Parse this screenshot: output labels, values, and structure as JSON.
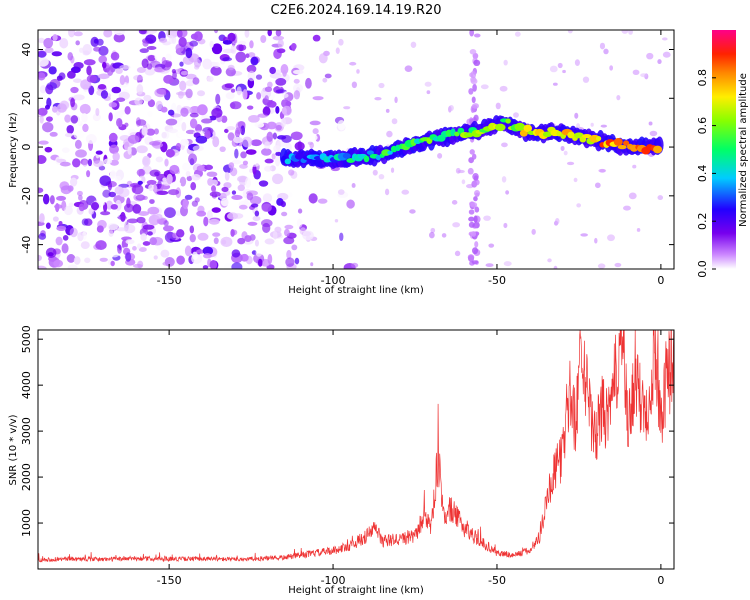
{
  "title": "C2E6.2024.169.14.19.R20",
  "colors": {
    "snr_line": "#ee3333",
    "axis": "#000000",
    "background": "#ffffff"
  },
  "chart_data": [
    {
      "type": "heatmap",
      "xlabel": "Height of straight line (km)",
      "ylabel": "Frequency (Hz)",
      "xlim": [
        -190,
        4
      ],
      "ylim": [
        -50,
        48
      ],
      "xticks": [
        -150,
        -100,
        -50,
        0
      ],
      "yticks": [
        -40,
        -20,
        0,
        20,
        40
      ],
      "colorbar": {
        "label": "Normalized spectral amplitude",
        "range": [
          0,
          1
        ],
        "ticks": [
          0.0,
          0.2,
          0.4,
          0.6,
          0.8
        ],
        "colormap": "rainbow (white → purple → blue → cyan → green → yellow → orange → red → magenta)"
      },
      "features": [
        {
          "description": "noise speckle",
          "x_range": [
            -190,
            -110
          ],
          "y_range": [
            -50,
            48
          ],
          "amplitude": [
            0.0,
            0.15
          ]
        },
        {
          "description": "signal band start",
          "x": -115,
          "y": -5
        },
        {
          "description": "signal band end",
          "x": 2,
          "y": 0
        },
        {
          "description": "vertical noise streak",
          "x": -57,
          "y_range": [
            -50,
            48
          ]
        }
      ],
      "ridge": [
        [
          -115,
          -5
        ],
        [
          -100,
          -5
        ],
        [
          -85,
          -3
        ],
        [
          -70,
          3
        ],
        [
          -55,
          7
        ],
        [
          -48,
          10
        ],
        [
          -40,
          6
        ],
        [
          -30,
          6
        ],
        [
          -20,
          3
        ],
        [
          -10,
          0
        ],
        [
          0,
          0
        ]
      ]
    },
    {
      "type": "line",
      "xlabel": "Height of straight line (km)",
      "ylabel": "SNR (10 * v/v)",
      "xlim": [
        -190,
        4
      ],
      "ylim": [
        0,
        5200
      ],
      "xticks": [
        -150,
        -100,
        -50,
        0
      ],
      "yticks": [
        1000,
        2000,
        3000,
        4000,
        5000
      ],
      "series": [
        {
          "points": [
            [
              -190,
              200
            ],
            [
              -180,
              220
            ],
            [
              -170,
              210
            ],
            [
              -160,
              230
            ],
            [
              -150,
              220
            ],
            [
              -140,
              220
            ],
            [
              -130,
              210
            ],
            [
              -120,
              230
            ],
            [
              -115,
              250
            ],
            [
              -110,
              300
            ],
            [
              -105,
              350
            ],
            [
              -100,
              400
            ],
            [
              -95,
              500
            ],
            [
              -90,
              700
            ],
            [
              -87,
              900
            ],
            [
              -85,
              600
            ],
            [
              -80,
              650
            ],
            [
              -75,
              700
            ],
            [
              -72,
              1200
            ],
            [
              -70,
              900
            ],
            [
              -68,
              2400
            ],
            [
              -66,
              1100
            ],
            [
              -64,
              1300
            ],
            [
              -60,
              900
            ],
            [
              -55,
              600
            ],
            [
              -50,
              350
            ],
            [
              -45,
              300
            ],
            [
              -40,
              400
            ],
            [
              -37,
              700
            ],
            [
              -35,
              1500
            ],
            [
              -33,
              2000
            ],
            [
              -30,
              2500
            ],
            [
              -28,
              3800
            ],
            [
              -26,
              3200
            ],
            [
              -24,
              5100
            ],
            [
              -22,
              3500
            ],
            [
              -20,
              2800
            ],
            [
              -18,
              3500
            ],
            [
              -16,
              3200
            ],
            [
              -14,
              4100
            ],
            [
              -12,
              5200
            ],
            [
              -10,
              3000
            ],
            [
              -8,
              4100
            ],
            [
              -6,
              3600
            ],
            [
              -4,
              3500
            ],
            [
              -2,
              4800
            ],
            [
              0,
              3300
            ],
            [
              2,
              4300
            ],
            [
              4,
              4400
            ]
          ]
        }
      ]
    }
  ]
}
